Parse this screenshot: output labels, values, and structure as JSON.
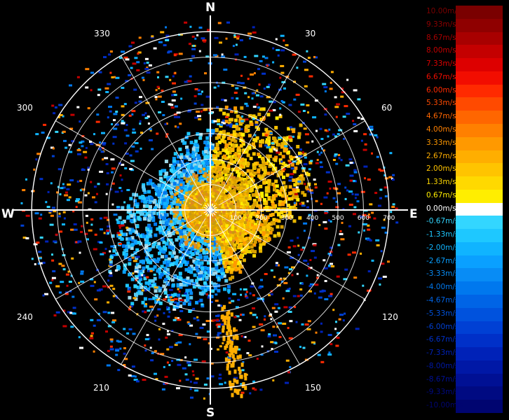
{
  "compass": {
    "north": "N",
    "south": "S",
    "east": "E",
    "west": "W"
  },
  "bearings": [
    "30",
    "60",
    "120",
    "150",
    "210",
    "240",
    "300",
    "330"
  ],
  "range_labels": [
    "100",
    "200",
    "300",
    "400",
    "500",
    "600",
    "700"
  ],
  "legend": {
    "items": [
      {
        "label": "10.00m/s",
        "color": "#7a0000"
      },
      {
        "label": "9.33m/s",
        "color": "#8f0000"
      },
      {
        "label": "8.67m/s",
        "color": "#a80000"
      },
      {
        "label": "8.00m/s",
        "color": "#c40000"
      },
      {
        "label": "7.33m/s",
        "color": "#dd0000"
      },
      {
        "label": "6.67m/s",
        "color": "#f20d00"
      },
      {
        "label": "6.00m/s",
        "color": "#ff2a00"
      },
      {
        "label": "5.33m/s",
        "color": "#ff4a00"
      },
      {
        "label": "4.67m/s",
        "color": "#ff6600"
      },
      {
        "label": "4.00m/s",
        "color": "#ff8000"
      },
      {
        "label": "3.33m/s",
        "color": "#ff9900"
      },
      {
        "label": "2.67m/s",
        "color": "#ffae00"
      },
      {
        "label": "2.00m/s",
        "color": "#ffc400"
      },
      {
        "label": "1.33m/s",
        "color": "#ffd900"
      },
      {
        "label": "0.67m/s",
        "color": "#ffee00"
      },
      {
        "label": "0.00m/s",
        "color": "#ffffff"
      },
      {
        "label": "-0.67m/s",
        "color": "#33d6ff"
      },
      {
        "label": "-1.33m/s",
        "color": "#1ec8ff"
      },
      {
        "label": "-2.00m/s",
        "color": "#10b4ff"
      },
      {
        "label": "-2.67m/s",
        "color": "#0aa0ff"
      },
      {
        "label": "-3.33m/s",
        "color": "#088cf5"
      },
      {
        "label": "-4.00m/s",
        "color": "#0078ee"
      },
      {
        "label": "-4.67m/s",
        "color": "#0064e6"
      },
      {
        "label": "-5.33m/s",
        "color": "#0052dd"
      },
      {
        "label": "-6.00m/s",
        "color": "#0040d4"
      },
      {
        "label": "-6.67m/s",
        "color": "#0030c8"
      },
      {
        "label": "-7.33m/s",
        "color": "#0022b8"
      },
      {
        "label": "-8.00m/s",
        "color": "#0018a6"
      },
      {
        "label": "-8.67m/s",
        "color": "#001094"
      },
      {
        "label": "-9.33m/s",
        "color": "#000a82"
      },
      {
        "label": "-10.00m/s",
        "color": "#000570"
      }
    ]
  }
}
